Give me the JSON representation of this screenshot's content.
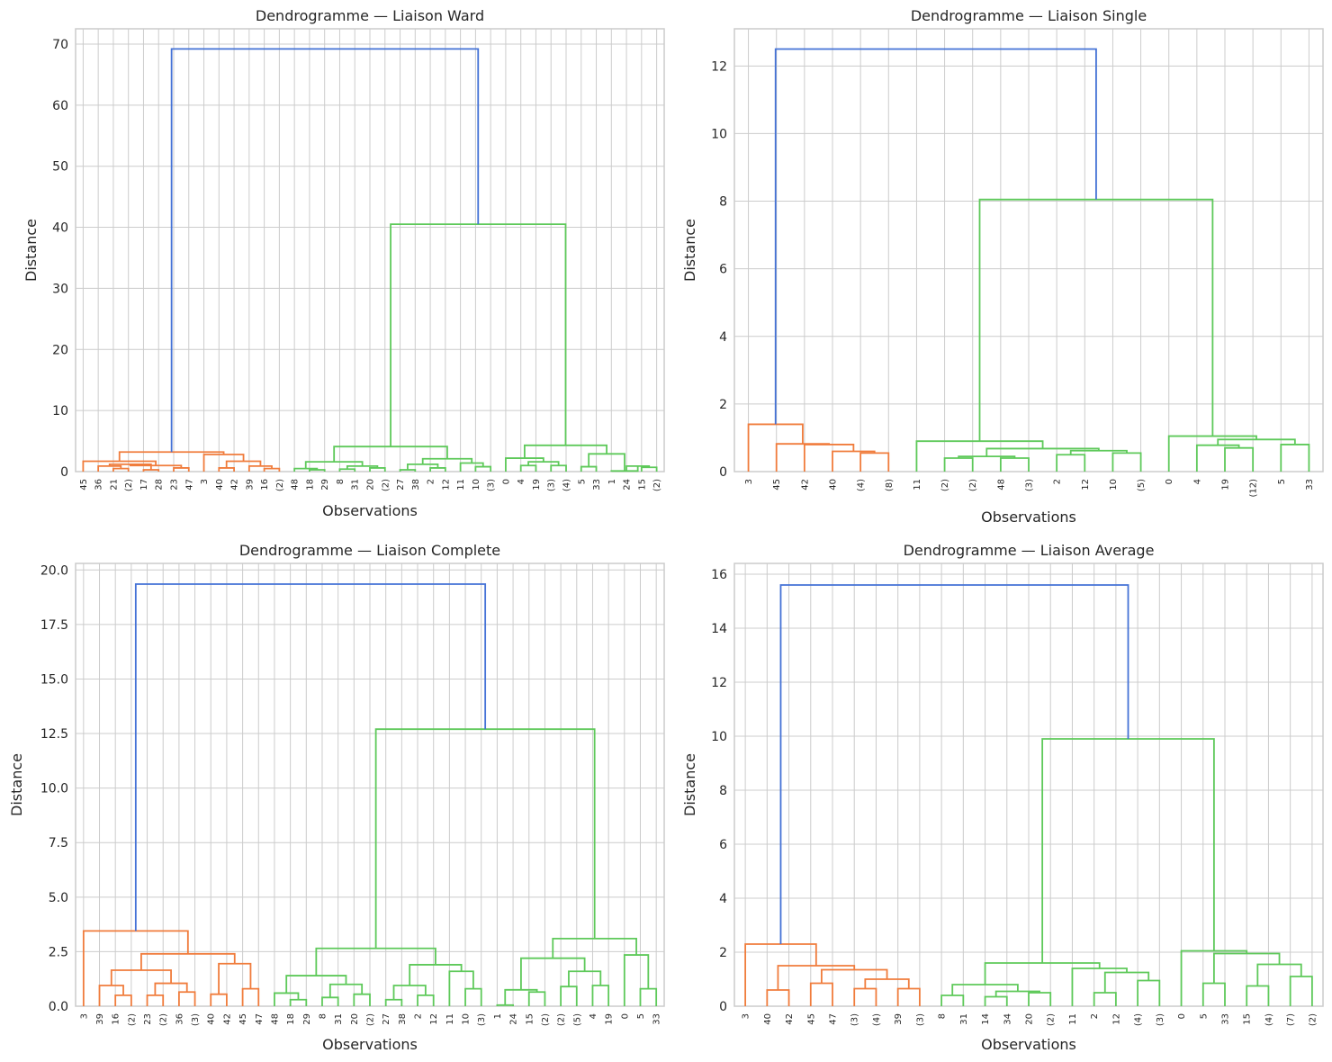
{
  "colors": {
    "top": "#4472d6",
    "c1": "#f07c3c",
    "c2": "#5ec95a",
    "grid": "#cccccc",
    "frame": "#cccccc"
  },
  "chart_data": [
    {
      "type": "dendrogram",
      "title": "Dendrogramme — Liaison Ward",
      "xlabel": "Observations",
      "ylabel": "Distance",
      "ylim": [
        0,
        72.5
      ],
      "yticks": [
        0,
        10,
        20,
        30,
        40,
        50,
        60,
        70
      ],
      "tick_decimals": 0,
      "leaves": [
        "45",
        "36",
        "21",
        "(2)",
        "17",
        "28",
        "23",
        "47",
        "3",
        "40",
        "42",
        "39",
        "16",
        "(2)",
        "48",
        "18",
        "29",
        "8",
        "31",
        "20",
        "(2)",
        "27",
        "38",
        "2",
        "12",
        "11",
        "10",
        "(3)",
        "0",
        "4",
        "19",
        "(3)",
        "(4)",
        "5",
        "33",
        "1",
        "24",
        "15",
        "(2)"
      ],
      "tree": [
        [
          [
            0,
            [
              [
                [
                  1,
                  [
                    2,
                    3,
                    0.5
                  ],
                  0.9
                ],
                [
                  4,
                  5,
                  0.3
                ],
                1.2
              ],
              [
                6,
                7,
                0.6
              ],
              1.0
            ],
            1.7
          ],
          [
            8,
            [
              [
                9,
                10,
                0.6
              ],
              [
                11,
                [
                  12,
                  13,
                  0.5
                ],
                0.9
              ],
              1.7
            ],
            2.8
          ],
          3.2
        ],
        [
          [
            [
              [
                14,
                [
                  15,
                  16,
                  0.3
                ],
                0.5
              ],
              [
                [
                  17,
                  18,
                  0.4
                ],
                [
                  19,
                  20,
                  0.6
                ],
                0.9
              ],
              1.6
            ],
            [
              [
                [
                  21,
                  22,
                  0.3
                ],
                [
                  23,
                  24,
                  0.6
                ],
                1.2
              ],
              [
                25,
                [
                  26,
                  27,
                  0.8
                ],
                1.4
              ],
              2.1
            ],
            4.1
          ],
          [
            [
              28,
              [
                [
                  29,
                  30,
                  1.0
                ],
                [
                  31,
                  32,
                  1.0
                ],
                1.6
              ],
              2.2
            ],
            [
              [
                33,
                34,
                0.8
              ],
              [
                35,
                [
                  36,
                  [
                    37,
                    38,
                    0.7
                  ],
                  0.9
                ],
                0.1
              ],
              2.9
            ],
            4.3
          ],
          40.5
        ],
        69.2
      ]
    },
    {
      "type": "dendrogram",
      "title": "Dendrogramme — Liaison Single",
      "xlabel": "Observations",
      "ylabel": "Distance",
      "ylim": [
        0,
        13.1
      ],
      "yticks": [
        0,
        2,
        4,
        6,
        8,
        10,
        12
      ],
      "tick_decimals": 0,
      "leaves": [
        "3",
        "45",
        "42",
        "40",
        "(4)",
        "(8)",
        "11",
        "(2)",
        "(2)",
        "48",
        "(3)",
        "2",
        "12",
        "10",
        "(5)",
        "0",
        "4",
        "19",
        "(12)",
        "5",
        "33"
      ],
      "tree": [
        [
          0,
          [
            1,
            [
              2,
              [
                3,
                [
                  4,
                  5,
                  0.55
                ],
                0.6
              ],
              0.8
            ],
            0.82
          ],
          1.4
        ],
        [
          [
            6,
            [
              [
                [
                  7,
                  8,
                  0.4
                ],
                [
                  9,
                  10,
                  0.4
                ],
                0.45
              ],
              [
                [
                  11,
                  12,
                  0.5
                ],
                [
                  13,
                  14,
                  0.55
                ],
                0.62
              ],
              0.68
            ],
            0.9
          ],
          [
            15,
            [
              [
                16,
                [
                  17,
                  18,
                  0.7
                ],
                0.78
              ],
              [
                19,
                20,
                0.8
              ],
              0.95
            ],
            1.05
          ],
          8.05
        ],
        12.5
      ]
    },
    {
      "type": "dendrogram",
      "title": "Dendrogramme — Liaison Complete",
      "xlabel": "Observations",
      "ylabel": "Distance",
      "ylim": [
        0,
        20.3
      ],
      "yticks": [
        0,
        2.5,
        5,
        7.5,
        10,
        12.5,
        15,
        17.5,
        20
      ],
      "tick_decimals": 1,
      "leaves": [
        "3",
        "39",
        "16",
        "(2)",
        "23",
        "(2)",
        "36",
        "(3)",
        "40",
        "42",
        "45",
        "47",
        "48",
        "18",
        "29",
        "8",
        "31",
        "20",
        "(2)",
        "27",
        "38",
        "2",
        "12",
        "11",
        "10",
        "(3)",
        "1",
        "24",
        "15",
        "(2)",
        "(2)",
        "(5)",
        "4",
        "19",
        "0",
        "5",
        "33"
      ],
      "tree": [
        [
          0,
          [
            [
              [
                1,
                [
                  2,
                  3,
                  0.5
                ],
                0.95
              ],
              [
                [
                  4,
                  5,
                  0.5
                ],
                [
                  6,
                  7,
                  0.65
                ],
                1.05
              ],
              1.65
            ],
            [
              [
                8,
                9,
                0.55
              ],
              [
                10,
                11,
                0.8
              ],
              1.95
            ],
            2.4
          ],
          3.45
        ],
        [
          [
            [
              [
                12,
                [
                  13,
                  14,
                  0.3
                ],
                0.6
              ],
              [
                [
                  15,
                  16,
                  0.4
                ],
                [
                  17,
                  18,
                  0.55
                ],
                1.0
              ],
              1.4
            ],
            [
              [
                [
                  19,
                  20,
                  0.3
                ],
                [
                  21,
                  22,
                  0.5
                ],
                0.95
              ],
              [
                23,
                [
                  24,
                  25,
                  0.8
                ],
                1.6
              ],
              1.9
            ],
            2.65
          ],
          [
            [
              [
                [
                  26,
                  27,
                  0.05
                ],
                [
                  28,
                  29,
                  0.65
                ],
                0.75
              ],
              [
                [
                  30,
                  31,
                  0.9
                ],
                [
                  32,
                  33,
                  0.95
                ],
                1.6
              ],
              2.2
            ],
            [
              34,
              [
                35,
                36,
                0.8
              ],
              2.35
            ],
            3.1
          ],
          12.7
        ],
        19.35
      ]
    },
    {
      "type": "dendrogram",
      "title": "Dendrogramme — Liaison Average",
      "xlabel": "Observations",
      "ylabel": "Distance",
      "ylim": [
        0,
        16.4
      ],
      "yticks": [
        0,
        2,
        4,
        6,
        8,
        10,
        12,
        14,
        16
      ],
      "tick_decimals": 0,
      "leaves": [
        "3",
        "40",
        "42",
        "45",
        "47",
        "(3)",
        "(4)",
        "39",
        "(3)",
        "8",
        "31",
        "14",
        "34",
        "20",
        "(2)",
        "11",
        "2",
        "12",
        "(4)",
        "(3)",
        "0",
        "5",
        "33",
        "15",
        "(4)",
        "(7)",
        "(2)"
      ],
      "tree": [
        [
          0,
          [
            [
              1,
              2,
              0.6
            ],
            [
              [
                3,
                4,
                0.85
              ],
              [
                [
                  5,
                  6,
                  0.65
                ],
                [
                  7,
                  8,
                  0.65
                ],
                1.0
              ],
              1.35
            ],
            1.5
          ],
          2.3
        ],
        [
          [
            [
              [
                9,
                10,
                0.4
              ],
              [
                [
                  11,
                  12,
                  0.35
                ],
                [
                  13,
                  14,
                  0.5
                ],
                0.55
              ],
              0.8
            ],
            [
              15,
              [
                [
                  16,
                  17,
                  0.5
                ],
                [
                  18,
                  19,
                  0.95
                ],
                1.25
              ],
              1.4
            ],
            1.6
          ],
          [
            20,
            [
              [
                21,
                22,
                0.85
              ],
              [
                [
                  23,
                  24,
                  0.75
                ],
                [
                  25,
                  26,
                  1.1
                ],
                1.55
              ],
              1.95
            ],
            2.05
          ],
          9.9
        ],
        15.6
      ]
    }
  ]
}
